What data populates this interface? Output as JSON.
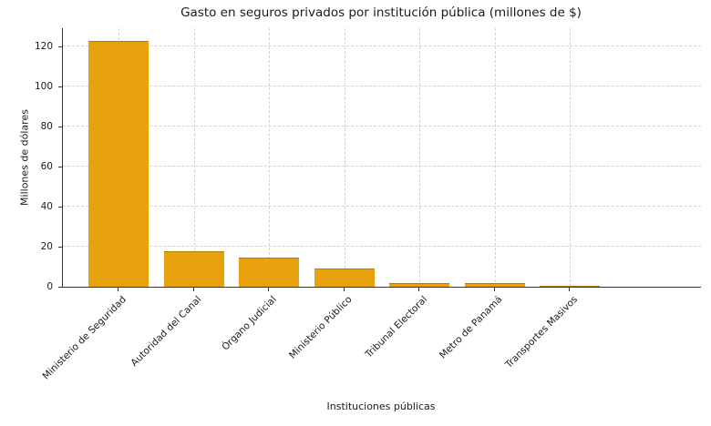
{
  "chart_data": {
    "type": "bar",
    "title": "Gasto en seguros privados por institución pública (millones de $)",
    "xlabel": "Instituciones públicas",
    "ylabel": "Millones de dólares",
    "categories": [
      "Ministerio de Seguridad",
      "Autoridad del Canal",
      "Órgano Judicial",
      "Ministerio Público",
      "Tribunal Electoral",
      "Metro de Panamá",
      "Transportes Masivos"
    ],
    "values": [
      122.7,
      17.5,
      14.6,
      9.0,
      2.0,
      2.0,
      0.4
    ],
    "yticks": [
      0,
      20,
      40,
      60,
      80,
      100,
      120
    ],
    "ylim": [
      0,
      129
    ],
    "grid": true,
    "grid_line_style": "dashed",
    "legend": "none",
    "bar_color": "#E8A20D",
    "bar_edge_color": "#AD7D07",
    "grid_color": "#D2D2D2",
    "axis_color": "#333333",
    "text_color": "#1A1A1A"
  }
}
